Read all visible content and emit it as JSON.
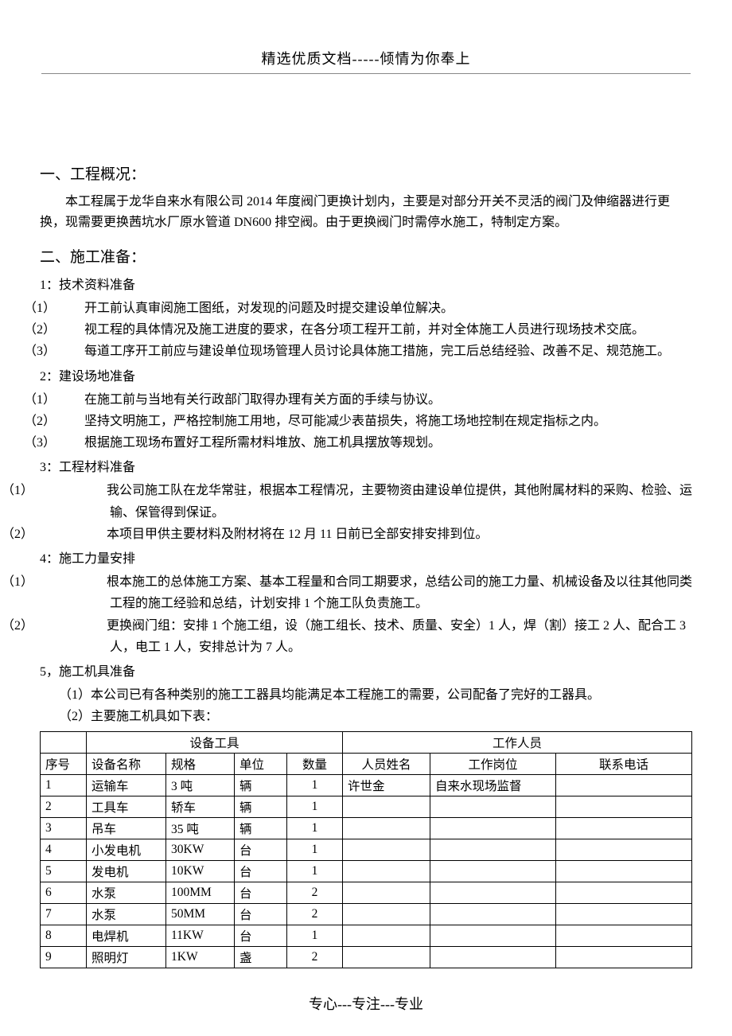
{
  "header": {
    "title": "精选优质文档-----倾情为你奉上"
  },
  "footer": {
    "text": "专心---专注---专业"
  },
  "section1": {
    "heading": "一、工程概况：",
    "body": "本工程属于龙华自来水有限公司 2014 年度阀门更换计划内，主要是对部分开关不灵活的阀门及伸缩器进行更换，现需要更换茜坑水厂原水管道 DN600 排空阀。由于更换阀门时需停水施工，特制定方案。"
  },
  "section2": {
    "heading": "二、施工准备：",
    "s1": {
      "title": "1：技术资料准备",
      "items": [
        {
          "num": "（1）",
          "text": "开工前认真审阅施工图纸，对发现的问题及时提交建设单位解决。"
        },
        {
          "num": "（2）",
          "text": "视工程的具体情况及施工进度的要求，在各分项工程开工前，并对全体施工人员进行现场技术交底。"
        },
        {
          "num": "（3）",
          "text": "每道工序开工前应与建设单位现场管理人员讨论具体施工措施，完工后总结经验、改善不足、规范施工。"
        }
      ]
    },
    "s2": {
      "title": "2：建设场地准备",
      "items": [
        {
          "num": "（1）",
          "text": "在施工前与当地有关行政部门取得办理有关方面的手续与协议。"
        },
        {
          "num": "（2）",
          "text": "坚持文明施工，严格控制施工用地，尽可能减少表苗损失，将施工场地控制在规定指标之内。"
        },
        {
          "num": "（3）",
          "text": "根据施工现场布置好工程所需材料堆放、施工机具摆放等规划。"
        }
      ]
    },
    "s3": {
      "title": "3：工程材料准备",
      "items": [
        {
          "num": "（1）",
          "text": "我公司施工队在龙华常驻，根据本工程情况，主要物资由建设单位提供，其他附属材料的采购、检验、运输、保管得到保证。"
        },
        {
          "num": "（2）",
          "text": "本项目甲供主要材料及附材将在 12 月 11 日前已全部安排安排到位。"
        }
      ]
    },
    "s4": {
      "title": "4：施工力量安排",
      "items": [
        {
          "num": "（1）",
          "text": "根本施工的总体施工方案、基本工程量和合同工期要求，总结公司的施工力量、机械设备及以往其他同类工程的施工经验和总结，计划安排 1 个施工队负责施工。"
        },
        {
          "num": "（2）",
          "text": "更换阀门组：安排 1 个施工组，设（施工组长、技术、质量、安全）1 人，焊（割）接工 2 人、配合工 3 人，电工 1 人，安排总计为 7 人。"
        }
      ]
    },
    "s5": {
      "title": "5，施工机具准备",
      "items": [
        {
          "num": "",
          "text": "（1）本公司已有各种类别的施工工器具均能满足本工程施工的需要，公司配备了完好的工器具。"
        },
        {
          "num": "",
          "text": "（2）主要施工机具如下表："
        }
      ]
    }
  },
  "table": {
    "group1": "设备工具",
    "group2": "工作人员",
    "headers": {
      "c1": "序号",
      "c2": "设备名称",
      "c3": "规格",
      "c4": "单位",
      "c5": "数量",
      "c6": "人员姓名",
      "c7": "工作岗位",
      "c8": "联系电话"
    },
    "rows": [
      {
        "c1": "1",
        "c2": "运输车",
        "c3": "3 吨",
        "c4": "辆",
        "c5": "1",
        "c6": "许世金",
        "c7": "自来水现场监督",
        "c8": ""
      },
      {
        "c1": "2",
        "c2": "工具车",
        "c3": "轿车",
        "c4": "辆",
        "c5": "1",
        "c6": "",
        "c7": "",
        "c8": ""
      },
      {
        "c1": "3",
        "c2": "吊车",
        "c3": "35 吨",
        "c4": "辆",
        "c5": "1",
        "c6": "",
        "c7": "",
        "c8": ""
      },
      {
        "c1": "4",
        "c2": "小发电机",
        "c3": "30KW",
        "c4": "台",
        "c5": "1",
        "c6": "",
        "c7": "",
        "c8": ""
      },
      {
        "c1": "5",
        "c2": "发电机",
        "c3": "10KW",
        "c4": "台",
        "c5": "1",
        "c6": "",
        "c7": "",
        "c8": ""
      },
      {
        "c1": "6",
        "c2": "水泵",
        "c3": "100MM",
        "c4": "台",
        "c5": "2",
        "c6": "",
        "c7": "",
        "c8": ""
      },
      {
        "c1": "7",
        "c2": "水泵",
        "c3": "50MM",
        "c4": "台",
        "c5": "2",
        "c6": "",
        "c7": "",
        "c8": ""
      },
      {
        "c1": "8",
        "c2": "电焊机",
        "c3": "11KW",
        "c4": "台",
        "c5": "1",
        "c6": "",
        "c7": "",
        "c8": ""
      },
      {
        "c1": "9",
        "c2": "照明灯",
        "c3": "1KW",
        "c4": "盏",
        "c5": "2",
        "c6": "",
        "c7": "",
        "c8": ""
      }
    ],
    "col_widths": [
      "58px",
      "100px",
      "86px",
      "66px",
      "70px",
      "110px",
      "158px",
      "auto"
    ]
  }
}
